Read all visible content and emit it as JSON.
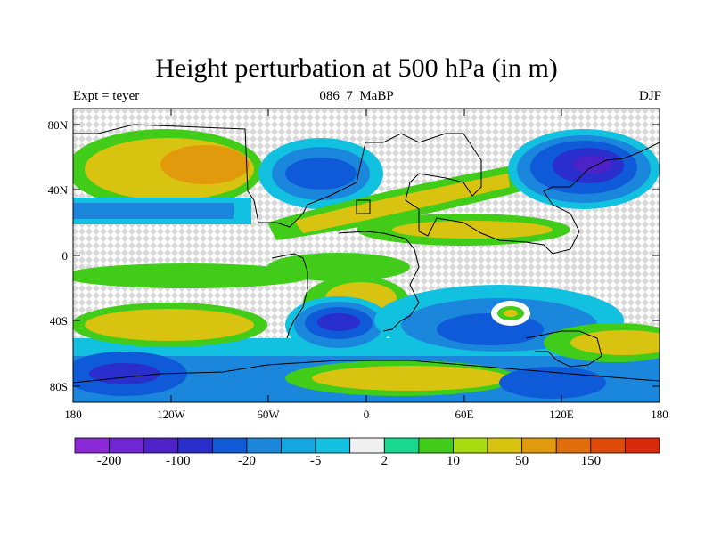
{
  "title": "Height perturbation at 500 hPa (in m)",
  "subtitle_left": "Expt = teyer",
  "subtitle_center": "086_7_MaBP",
  "subtitle_right": "DJF",
  "lat_labels": [
    "80N",
    "40N",
    "0",
    "40S",
    "80S"
  ],
  "lon_labels": [
    "180",
    "120W",
    "60W",
    "0",
    "60E",
    "120E",
    "180"
  ],
  "colorbar": {
    "colors": [
      "#8b28d8",
      "#7026d4",
      "#4d22c8",
      "#2a2ecc",
      "#0e5ad8",
      "#1a86dc",
      "#14a6e0",
      "#12c0e0",
      "#f0f0f0",
      "#18d890",
      "#40cc18",
      "#a8dc10",
      "#d8c410",
      "#e09a0c",
      "#e06c0a",
      "#e04a08",
      "#d82a08"
    ],
    "labels": [
      "-200",
      "-100",
      "-20",
      "-5",
      "2",
      "10",
      "50",
      "150"
    ]
  },
  "colors": {
    "strong_neg": "#4d22c8",
    "neg": "#0e5ad8",
    "weak_neg": "#1a86dc",
    "slight_neg": "#12c0e0",
    "neutral": "#f0f0f0",
    "slight_pos": "#40cc18",
    "pos": "#d8c410",
    "strong_pos": "#e09a0c"
  }
}
